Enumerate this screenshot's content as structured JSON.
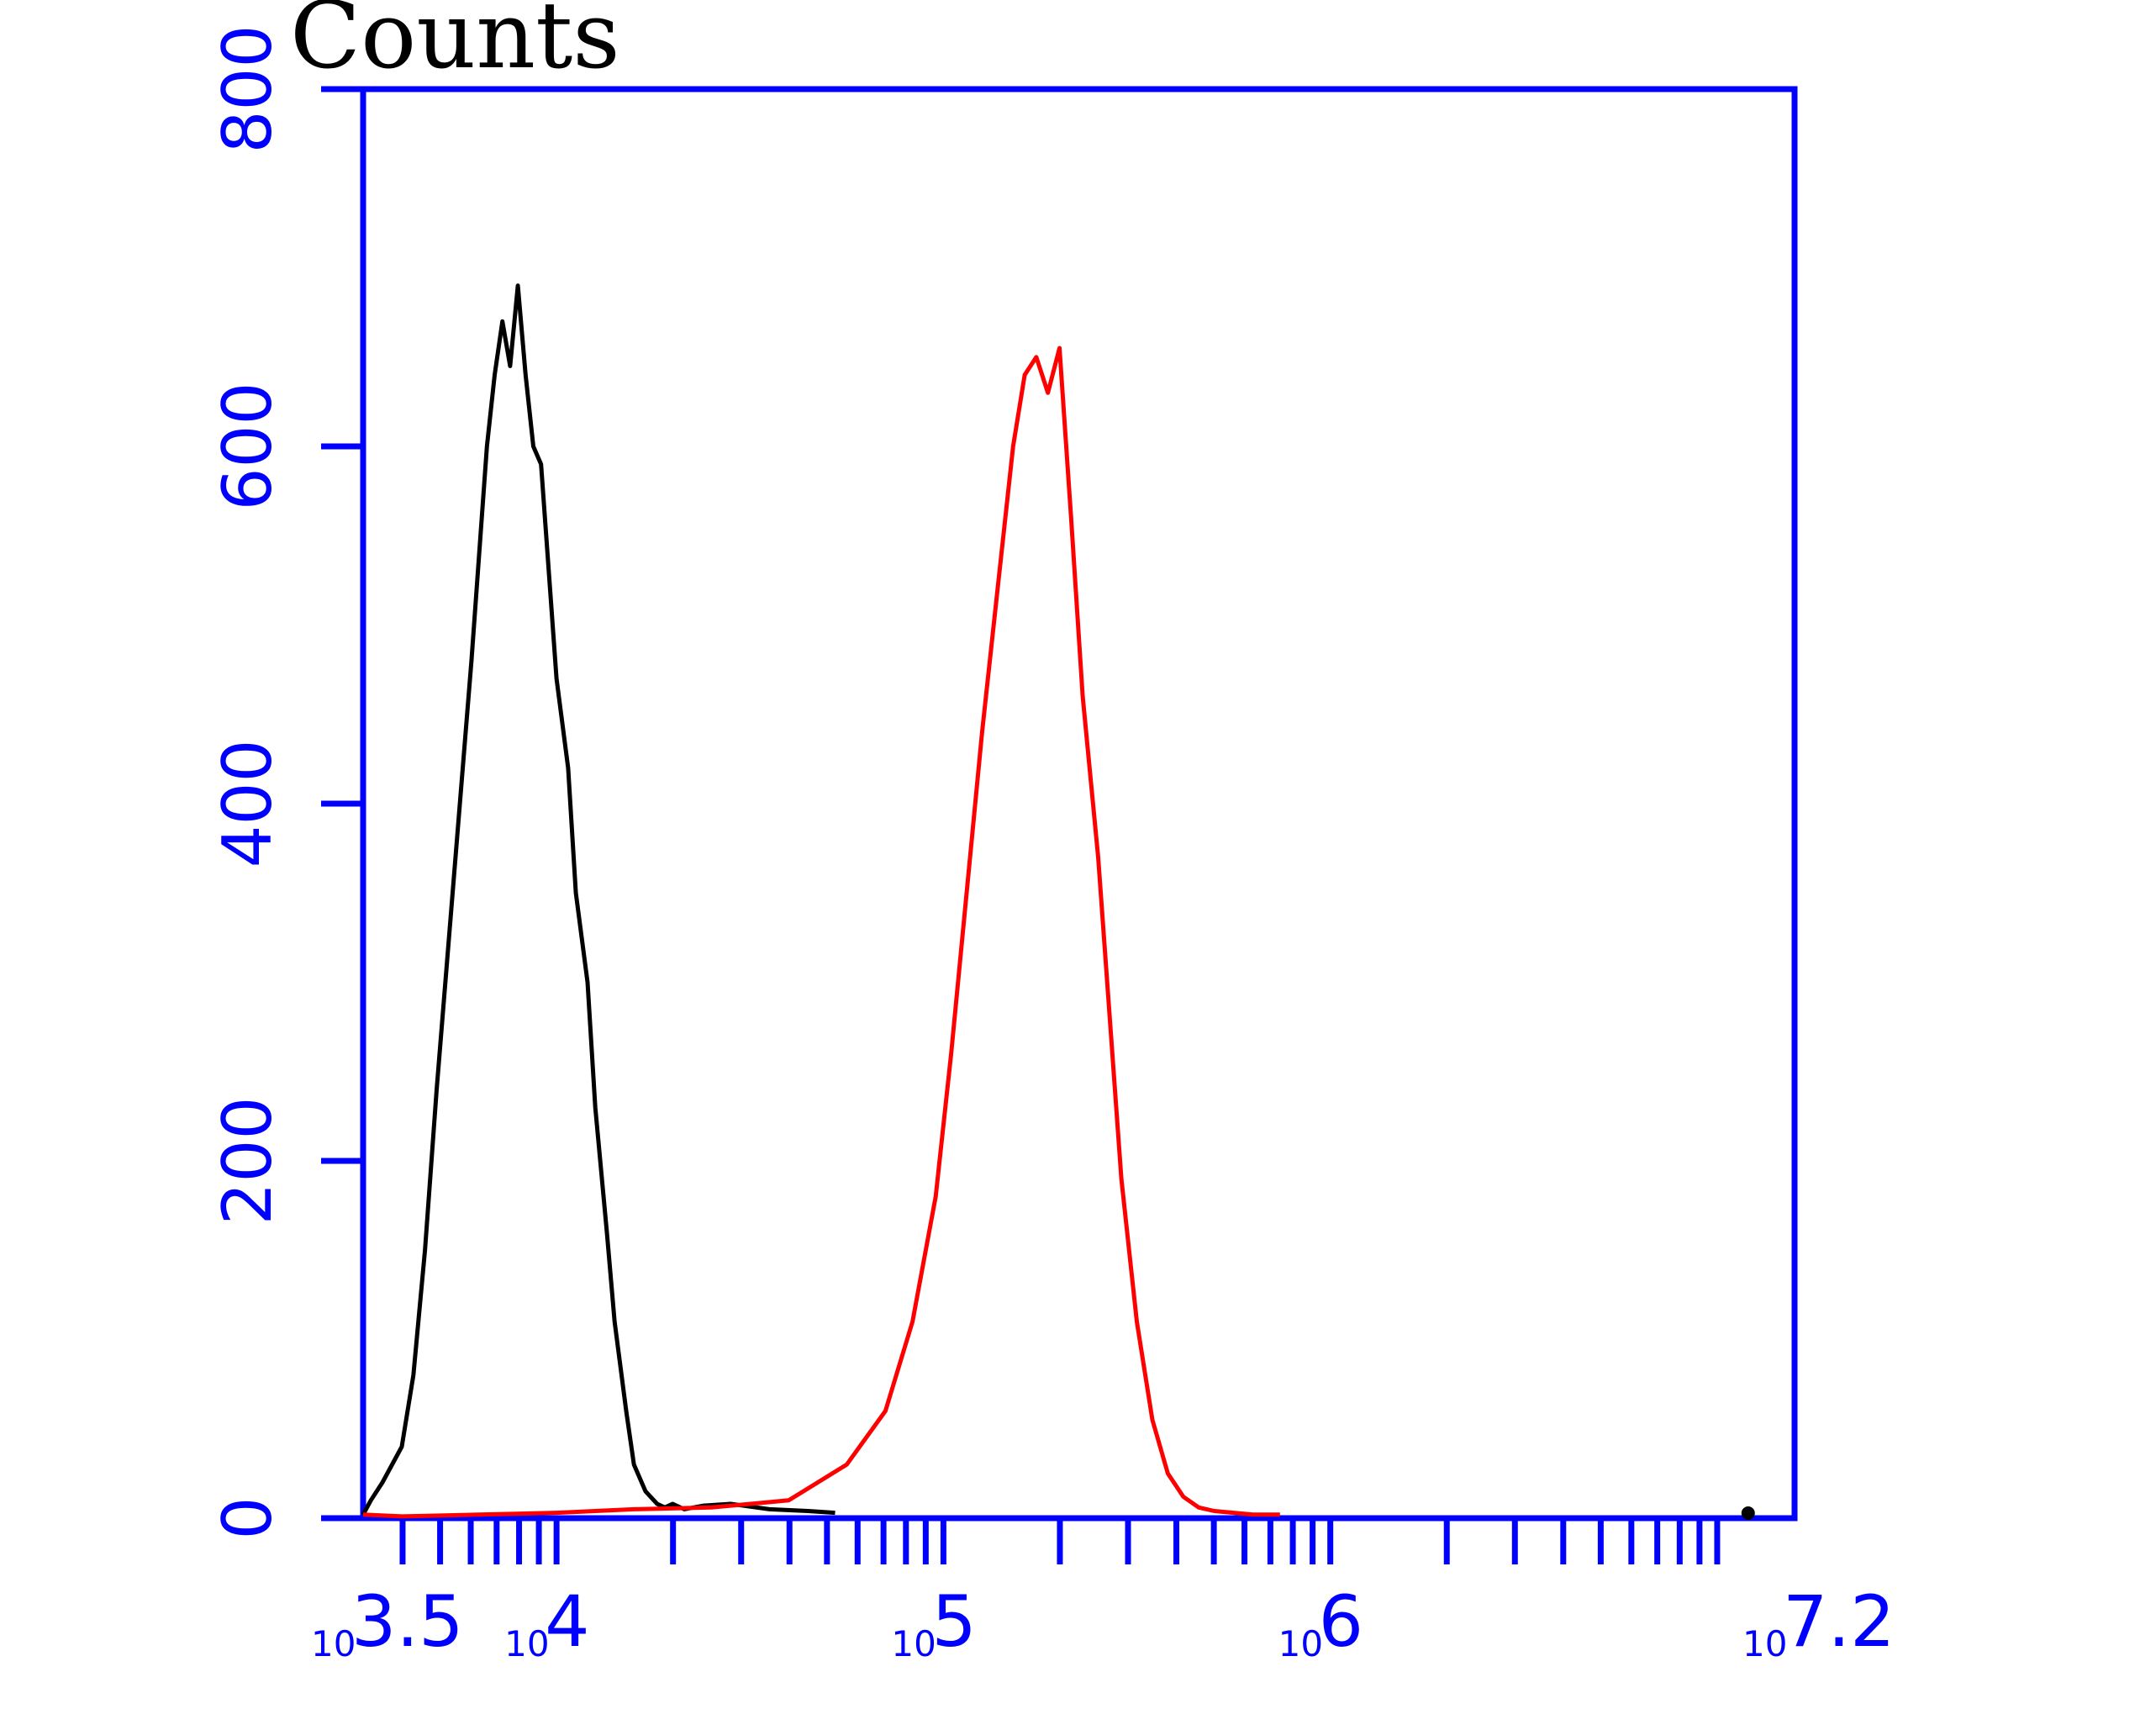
{
  "chart_data": {
    "type": "line",
    "title": "",
    "xlabel": "",
    "ylabel": "Counts",
    "x_scale": "log10",
    "xlim": [
      3.5,
      7.2
    ],
    "ylim": [
      0,
      800
    ],
    "yticks": [
      0,
      200,
      400,
      600,
      800
    ],
    "xticks": [
      {
        "base": "10",
        "exp": "3.5",
        "value": 3.5
      },
      {
        "base": "10",
        "exp": "4",
        "value": 4
      },
      {
        "base": "10",
        "exp": "5",
        "value": 5
      },
      {
        "base": "10",
        "exp": "6",
        "value": 6
      },
      {
        "base": "10",
        "exp": "7.2",
        "value": 7.2
      }
    ],
    "grid": false,
    "legend": "none",
    "colors": {
      "axis": "#0000ff",
      "control": "#000000",
      "sample": "#ff0000",
      "ylabel": "#000000"
    },
    "series": [
      {
        "color": "#000000",
        "x": [
          3.5,
          3.52,
          3.55,
          3.6,
          3.63,
          3.66,
          3.69,
          3.72,
          3.75,
          3.78,
          3.8,
          3.82,
          3.84,
          3.86,
          3.88,
          3.9,
          3.92,
          3.94,
          3.96,
          3.98,
          4.0,
          4.03,
          4.05,
          4.08,
          4.1,
          4.13,
          4.15,
          4.18,
          4.2,
          4.23,
          4.26,
          4.28,
          4.3,
          4.33,
          4.38,
          4.45,
          4.55,
          4.65,
          4.72
        ],
        "y": [
          2,
          10,
          20,
          40,
          80,
          150,
          240,
          320,
          400,
          480,
          540,
          600,
          640,
          670,
          645,
          690,
          640,
          600,
          590,
          530,
          470,
          420,
          350,
          300,
          230,
          160,
          110,
          60,
          30,
          15,
          8,
          6,
          8,
          5,
          7,
          8,
          5,
          4,
          3
        ]
      },
      {
        "color": "#ff0000",
        "x": [
          3.5,
          3.6,
          3.8,
          4.0,
          4.2,
          4.4,
          4.6,
          4.75,
          4.85,
          4.92,
          4.98,
          5.02,
          5.06,
          5.1,
          5.14,
          5.18,
          5.21,
          5.24,
          5.27,
          5.3,
          5.33,
          5.36,
          5.4,
          5.43,
          5.46,
          5.5,
          5.54,
          5.58,
          5.62,
          5.66,
          5.7,
          5.75,
          5.8,
          5.87
        ],
        "y": [
          2,
          1,
          2,
          3,
          5,
          6,
          10,
          30,
          60,
          110,
          180,
          260,
          350,
          440,
          520,
          600,
          640,
          650,
          630,
          655,
          560,
          460,
          370,
          280,
          190,
          110,
          55,
          25,
          12,
          6,
          4,
          3,
          2,
          2
        ]
      }
    ]
  }
}
